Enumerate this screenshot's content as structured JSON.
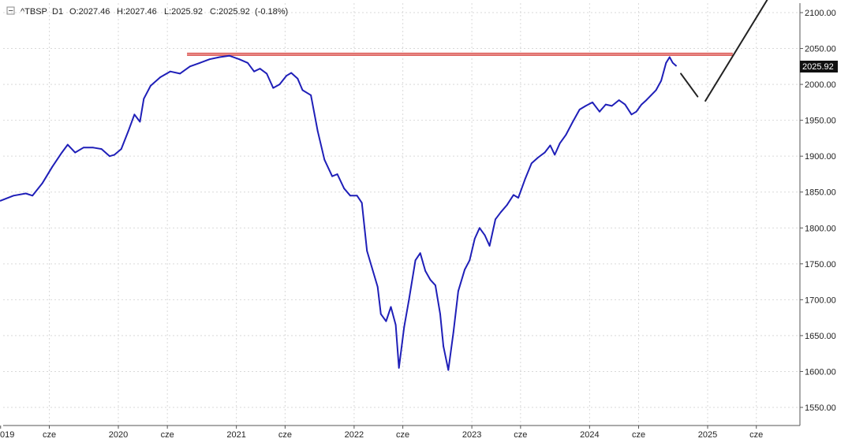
{
  "header": {
    "collapse_symbol": "−",
    "symbol": "^TBSP",
    "interval": "D1",
    "open": "O:2027.46",
    "high": "H:2027.46",
    "low": "L:2025.92",
    "close": "C:2025.92",
    "change": "(-0.18%)"
  },
  "last_price_label": "2025.92",
  "colors": {
    "series": "#1f1fb8",
    "resistance": "#d9534f",
    "projection": "#222222",
    "grid": "#d9d9d9",
    "price_tag_bg": "#111111"
  },
  "chart_data": {
    "type": "line",
    "title": "",
    "xlabel": "",
    "ylabel": "",
    "ylim": [
      1530,
      2112
    ],
    "xlim": [
      "2019-01-01",
      "2025-08-01"
    ],
    "grid": true,
    "y_axis_side": "right",
    "y_ticks": [
      "2100.00",
      "2050.00",
      "2000.00",
      "1950.00",
      "1900.00",
      "1850.00",
      "1800.00",
      "1750.00",
      "1700.00",
      "1650.00",
      "1600.00",
      "1550.00"
    ],
    "x_ticks": [
      {
        "label": "019",
        "date": "2019-01-01"
      },
      {
        "label": "cze",
        "date": "2019-06-01"
      },
      {
        "label": "2020",
        "date": "2020-01-01"
      },
      {
        "label": "cze",
        "date": "2020-06-01"
      },
      {
        "label": "2021",
        "date": "2021-01-01"
      },
      {
        "label": "cze",
        "date": "2021-06-01"
      },
      {
        "label": "2022",
        "date": "2022-01-01"
      },
      {
        "label": "cze",
        "date": "2022-06-01"
      },
      {
        "label": "2023",
        "date": "2023-01-01"
      },
      {
        "label": "cze",
        "date": "2023-06-01"
      },
      {
        "label": "2024",
        "date": "2024-01-01"
      },
      {
        "label": "cze",
        "date": "2024-06-01"
      },
      {
        "label": "2025",
        "date": "2025-01-01"
      },
      {
        "label": "cze",
        "date": "2025-06-01"
      }
    ],
    "series": [
      {
        "values": [
          [
            "2019-01-01",
            1838
          ],
          [
            "2019-02-10",
            1845
          ],
          [
            "2019-03-20",
            1848
          ],
          [
            "2019-04-10",
            1845
          ],
          [
            "2019-05-10",
            1862
          ],
          [
            "2019-06-10",
            1885
          ],
          [
            "2019-07-10",
            1905
          ],
          [
            "2019-07-28",
            1916
          ],
          [
            "2019-08-20",
            1905
          ],
          [
            "2019-09-15",
            1912
          ],
          [
            "2019-10-15",
            1912
          ],
          [
            "2019-11-10",
            1910
          ],
          [
            "2019-12-05",
            1900
          ],
          [
            "2019-12-20",
            1902
          ],
          [
            "2020-01-10",
            1910
          ],
          [
            "2020-02-01",
            1935
          ],
          [
            "2020-02-20",
            1958
          ],
          [
            "2020-03-08",
            1948
          ],
          [
            "2020-03-20",
            1980
          ],
          [
            "2020-04-10",
            1998
          ],
          [
            "2020-05-10",
            2010
          ],
          [
            "2020-06-10",
            2018
          ],
          [
            "2020-07-10",
            2015
          ],
          [
            "2020-08-10",
            2025
          ],
          [
            "2020-09-10",
            2030
          ],
          [
            "2020-10-10",
            2035
          ],
          [
            "2020-11-10",
            2038
          ],
          [
            "2020-12-10",
            2040
          ],
          [
            "2021-01-10",
            2035
          ],
          [
            "2021-02-05",
            2030
          ],
          [
            "2021-02-25",
            2018
          ],
          [
            "2021-03-15",
            2022
          ],
          [
            "2021-04-05",
            2015
          ],
          [
            "2021-04-25",
            1995
          ],
          [
            "2021-05-15",
            2000
          ],
          [
            "2021-06-05",
            2012
          ],
          [
            "2021-06-20",
            2016
          ],
          [
            "2021-07-10",
            2008
          ],
          [
            "2021-07-25",
            1992
          ],
          [
            "2021-08-20",
            1985
          ],
          [
            "2021-09-10",
            1935
          ],
          [
            "2021-10-01",
            1895
          ],
          [
            "2021-10-25",
            1872
          ],
          [
            "2021-11-10",
            1875
          ],
          [
            "2021-12-01",
            1855
          ],
          [
            "2021-12-20",
            1845
          ],
          [
            "2022-01-10",
            1845
          ],
          [
            "2022-01-25",
            1835
          ],
          [
            "2022-02-10",
            1768
          ],
          [
            "2022-02-25",
            1745
          ],
          [
            "2022-03-15",
            1718
          ],
          [
            "2022-03-25",
            1680
          ],
          [
            "2022-04-10",
            1670
          ],
          [
            "2022-04-25",
            1690
          ],
          [
            "2022-05-10",
            1665
          ],
          [
            "2022-05-20",
            1605
          ],
          [
            "2022-06-05",
            1662
          ],
          [
            "2022-06-20",
            1700
          ],
          [
            "2022-07-10",
            1755
          ],
          [
            "2022-07-25",
            1765
          ],
          [
            "2022-08-10",
            1740
          ],
          [
            "2022-08-25",
            1728
          ],
          [
            "2022-09-10",
            1720
          ],
          [
            "2022-09-25",
            1680
          ],
          [
            "2022-10-05",
            1635
          ],
          [
            "2022-10-20",
            1602
          ],
          [
            "2022-11-05",
            1655
          ],
          [
            "2022-11-20",
            1712
          ],
          [
            "2022-12-10",
            1742
          ],
          [
            "2022-12-25",
            1755
          ],
          [
            "2023-01-10",
            1785
          ],
          [
            "2023-01-25",
            1800
          ],
          [
            "2023-02-10",
            1790
          ],
          [
            "2023-02-25",
            1775
          ],
          [
            "2023-03-15",
            1812
          ],
          [
            "2023-04-01",
            1822
          ],
          [
            "2023-04-20",
            1832
          ],
          [
            "2023-05-10",
            1846
          ],
          [
            "2023-05-25",
            1842
          ],
          [
            "2023-06-15",
            1868
          ],
          [
            "2023-07-05",
            1890
          ],
          [
            "2023-07-25",
            1898
          ],
          [
            "2023-08-15",
            1905
          ],
          [
            "2023-09-01",
            1915
          ],
          [
            "2023-09-15",
            1902
          ],
          [
            "2023-10-01",
            1918
          ],
          [
            "2023-10-20",
            1930
          ],
          [
            "2023-11-10",
            1948
          ],
          [
            "2023-12-01",
            1965
          ],
          [
            "2023-12-20",
            1970
          ],
          [
            "2024-01-10",
            1975
          ],
          [
            "2024-02-01",
            1962
          ],
          [
            "2024-02-20",
            1972
          ],
          [
            "2024-03-10",
            1970
          ],
          [
            "2024-04-01",
            1978
          ],
          [
            "2024-04-20",
            1972
          ],
          [
            "2024-05-10",
            1958
          ],
          [
            "2024-05-25",
            1962
          ],
          [
            "2024-06-10",
            1972
          ],
          [
            "2024-06-25",
            1978
          ],
          [
            "2024-07-10",
            1985
          ],
          [
            "2024-07-25",
            1992
          ],
          [
            "2024-08-10",
            2005
          ],
          [
            "2024-08-25",
            2030
          ],
          [
            "2024-09-05",
            2038
          ],
          [
            "2024-09-15",
            2030
          ],
          [
            "2024-09-25",
            2026
          ]
        ]
      }
    ],
    "resistance_line": {
      "value": 2042,
      "from": "2020-08-01",
      "to": "2025-03-20"
    },
    "projection_path": [
      [
        "2024-10-10",
        2015
      ],
      [
        "2024-12-01",
        1983
      ],
      [
        "2024-12-25",
        1977
      ],
      [
        "2025-07-05",
        2118
      ]
    ]
  }
}
